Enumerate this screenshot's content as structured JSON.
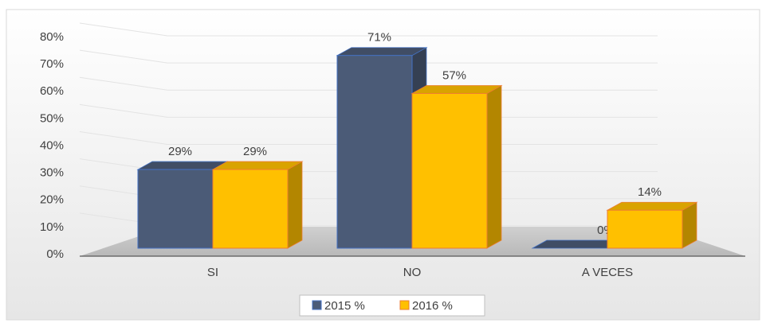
{
  "chart_data": {
    "type": "bar3d",
    "categories": [
      "SI",
      "NO",
      "A VECES"
    ],
    "series": [
      {
        "name": "2015 %",
        "color": "#4b5b77",
        "edge": "#4472c4",
        "values": [
          29,
          71,
          0
        ],
        "value_labels": [
          "29%",
          "71%",
          "0%"
        ]
      },
      {
        "name": "2016 %",
        "color": "#ffc000",
        "edge": "#ed7d31",
        "values": [
          29,
          57,
          14
        ],
        "value_labels": [
          "29%",
          "57%",
          "14%"
        ]
      }
    ],
    "ylim": [
      0,
      80
    ],
    "yticks": [
      {
        "value": 0,
        "label": "0%"
      },
      {
        "value": 10,
        "label": "10%"
      },
      {
        "value": 20,
        "label": "20%"
      },
      {
        "value": 30,
        "label": "30%"
      },
      {
        "value": 40,
        "label": "40%"
      },
      {
        "value": 50,
        "label": "50%"
      },
      {
        "value": 60,
        "label": "60%"
      },
      {
        "value": 70,
        "label": "70%"
      },
      {
        "value": 80,
        "label": "80%"
      }
    ],
    "grid": true,
    "legend": "bottom"
  }
}
